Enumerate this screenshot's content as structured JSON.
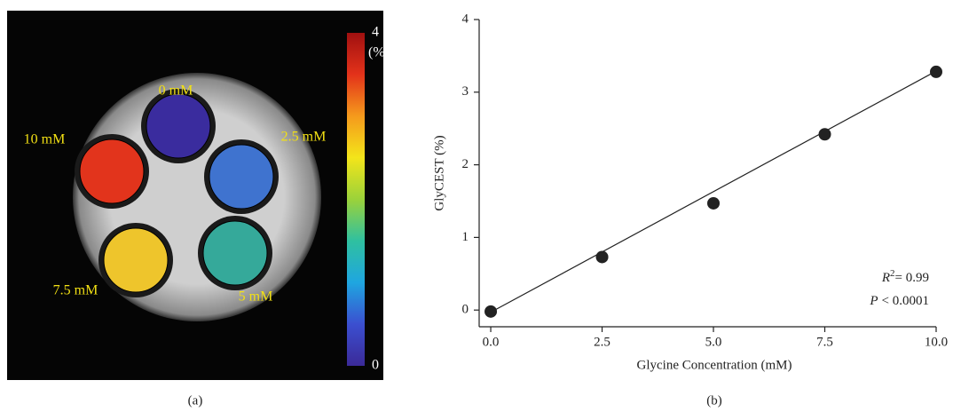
{
  "chart_data": [
    {
      "type": "image",
      "caption": "(a)",
      "disks": [
        {
          "label": "0 mM",
          "color": "#3a2c9e"
        },
        {
          "label": "2.5 mM",
          "color": "#3f73cf"
        },
        {
          "label": "5 mM",
          "color": "#35a99a"
        },
        {
          "label": "7.5 mM",
          "color": "#eec52c"
        },
        {
          "label": "10 mM",
          "color": "#e2341c"
        }
      ],
      "colormap": [
        "#3b2a98",
        "#3b4fd0",
        "#1fa6e0",
        "#2fc0a0",
        "#9bd23a",
        "#f3e51a",
        "#f59a1c",
        "#e3321a",
        "#a01010"
      ],
      "colorbar_ticks": [
        0,
        4
      ],
      "colorbar_unit": "(%)"
    },
    {
      "type": "scatter",
      "caption": "(b)",
      "x_label": "Glycine Concentration (mM)",
      "y_label": "GlyCEST (%)",
      "x": [
        0,
        2.5,
        5,
        7.5,
        10
      ],
      "values": [
        -0.02,
        0.73,
        1.47,
        2.42,
        3.28
      ],
      "color": "#222222",
      "fit": {
        "x": [
          0,
          10
        ],
        "values": [
          -0.03,
          3.29
        ]
      },
      "xlim": [
        -0.26,
        10
      ],
      "ylim": [
        -0.23,
        4
      ],
      "xticks": [
        {
          "value": 0,
          "label": "0.0"
        },
        2.5,
        {
          "value": 5,
          "label": "5.0"
        },
        7.5,
        {
          "value": 10,
          "label": "10.0"
        }
      ],
      "yticks": [
        0,
        1,
        2,
        3,
        4
      ],
      "r_squared": {
        "symbol": "R",
        "exponent": "2",
        "text": "= 0.99"
      },
      "p_value": {
        "symbol": "P",
        "text": "< 0.0001"
      }
    }
  ]
}
